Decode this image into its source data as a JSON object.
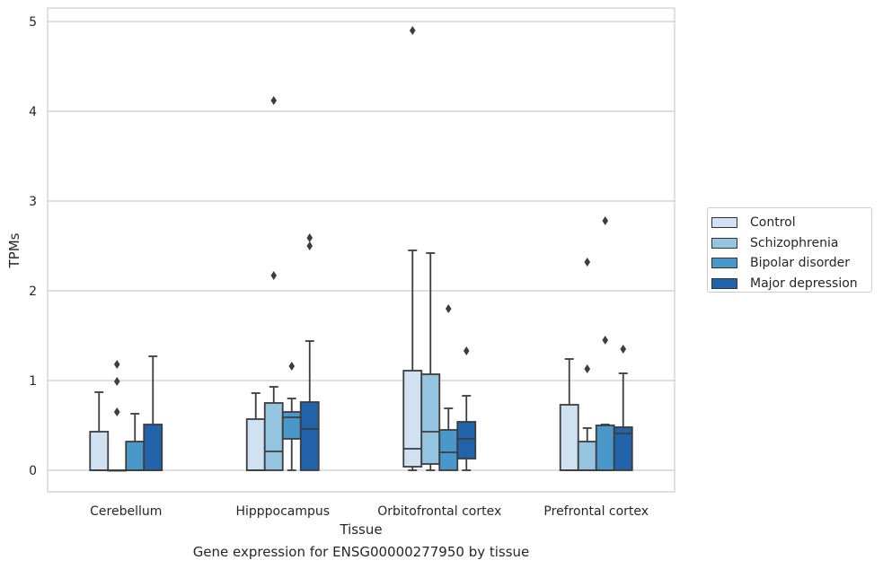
{
  "chart_data": {
    "type": "box",
    "xlabel": "Tissue",
    "ylabel": "TPMs",
    "caption": "Gene expression for ENSG00000277950 by tissue",
    "categories": [
      "Cerebellum",
      "Hipppocampus",
      "Orbitofrontal cortex",
      "Prefrontal cortex"
    ],
    "ylim": [
      -0.24,
      5.15
    ],
    "yticks": [
      "0",
      "1",
      "2",
      "3",
      "4",
      "5"
    ],
    "grid": "horizontal",
    "legend_placement": "right",
    "series": [
      {
        "name": "Control",
        "color": "#d0e1f2",
        "boxes": [
          {
            "q1": 0,
            "median": 0,
            "q3": 0.43,
            "whislo": 0,
            "whishi": 0.87,
            "fliers": []
          },
          {
            "q1": 0,
            "median": 0,
            "q3": 0.57,
            "whislo": 0,
            "whishi": 0.86,
            "fliers": []
          },
          {
            "q1": 0.04,
            "median": 0.24,
            "q3": 1.11,
            "whislo": 0,
            "whishi": 2.45,
            "fliers": [
              4.9
            ]
          },
          {
            "q1": 0,
            "median": 0,
            "q3": 0.73,
            "whislo": 0,
            "whishi": 1.24,
            "fliers": []
          }
        ]
      },
      {
        "name": "Schizophrenia",
        "color": "#94c4df",
        "boxes": [
          {
            "q1": 0,
            "median": 0,
            "q3": 0,
            "whislo": 0,
            "whishi": 0,
            "fliers": [
              0.65,
              0.99,
              1.18
            ]
          },
          {
            "q1": 0,
            "median": 0.21,
            "q3": 0.75,
            "whislo": 0,
            "whishi": 0.93,
            "fliers": [
              2.17,
              4.12
            ]
          },
          {
            "q1": 0.07,
            "median": 0.43,
            "q3": 1.07,
            "whislo": 0,
            "whishi": 2.42,
            "fliers": []
          },
          {
            "q1": 0,
            "median": 0,
            "q3": 0.32,
            "whislo": 0,
            "whishi": 0.47,
            "fliers": [
              1.13,
              2.32
            ]
          }
        ]
      },
      {
        "name": "Bipolar disorder",
        "color": "#4a98c9",
        "boxes": [
          {
            "q1": 0,
            "median": 0,
            "q3": 0.32,
            "whislo": 0,
            "whishi": 0.63,
            "fliers": []
          },
          {
            "q1": 0.35,
            "median": 0.59,
            "q3": 0.65,
            "whislo": 0,
            "whishi": 0.8,
            "fliers": [
              1.16
            ]
          },
          {
            "q1": 0,
            "median": 0.2,
            "q3": 0.45,
            "whislo": 0,
            "whishi": 0.69,
            "fliers": [
              1.8
            ]
          },
          {
            "q1": 0,
            "median": 0,
            "q3": 0.5,
            "whislo": 0,
            "whishi": 0.51,
            "fliers": [
              1.45,
              2.78
            ]
          }
        ]
      },
      {
        "name": "Major depression",
        "color": "#2164ab",
        "boxes": [
          {
            "q1": 0,
            "median": 0,
            "q3": 0.51,
            "whislo": 0,
            "whishi": 1.27,
            "fliers": []
          },
          {
            "q1": 0,
            "median": 0.46,
            "q3": 0.76,
            "whislo": 0,
            "whishi": 1.44,
            "fliers": [
              2.5,
              2.59
            ]
          },
          {
            "q1": 0.13,
            "median": 0.35,
            "q3": 0.54,
            "whislo": 0,
            "whishi": 0.83,
            "fliers": [
              1.33
            ]
          },
          {
            "q1": 0,
            "median": 0.41,
            "q3": 0.48,
            "whislo": 0,
            "whishi": 1.08,
            "fliers": [
              1.35
            ]
          }
        ]
      }
    ]
  }
}
